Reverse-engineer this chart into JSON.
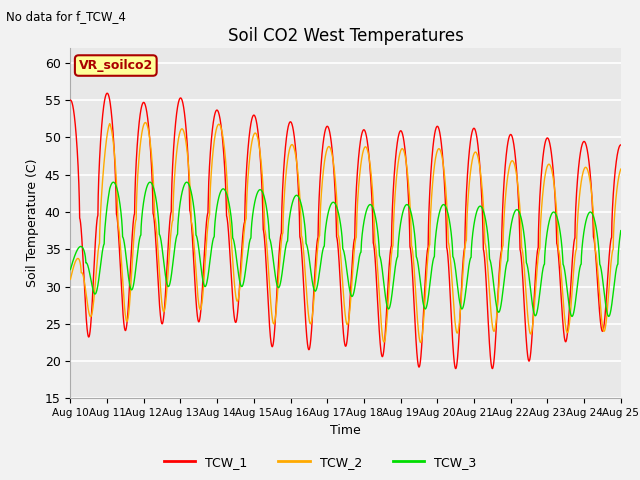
{
  "title": "Soil CO2 West Temperatures",
  "subtitle": "No data for f_TCW_4",
  "xlabel": "Time",
  "ylabel": "Soil Temperature (C)",
  "ylim": [
    15,
    62
  ],
  "yticks": [
    15,
    20,
    25,
    30,
    35,
    40,
    45,
    50,
    55,
    60
  ],
  "legend_labels": [
    "TCW_1",
    "TCW_2",
    "TCW_3"
  ],
  "legend_colors": [
    "#ff0000",
    "#ffaa00",
    "#00dd00"
  ],
  "annotation_box": "VR_soilco2",
  "annotation_box_color": "#aa0000",
  "annotation_box_bg": "#ffff99",
  "background_color": "#e8e8e8",
  "grid_color": "#ffffff",
  "period": 1.0,
  "tcw1_peaks": [
    55.0,
    56.0,
    54.5,
    55.5,
    53.0,
    53.0,
    51.5,
    51.5,
    50.5,
    51.5,
    51.5,
    50.5,
    50.0,
    49.5,
    49.0
  ],
  "tcw1_troughs": [
    23.0,
    23.5,
    25.0,
    25.0,
    26.0,
    22.0,
    21.5,
    22.0,
    20.5,
    19.0,
    19.0,
    19.0,
    20.5,
    24.0,
    24.0
  ],
  "tcw2_peaks": [
    31.0,
    52.0,
    52.0,
    51.0,
    52.0,
    50.0,
    48.5,
    49.0,
    48.5,
    48.5,
    48.5,
    47.0,
    46.5,
    46.0,
    46.0
  ],
  "tcw2_troughs": [
    28.0,
    24.0,
    27.0,
    26.0,
    29.0,
    25.0,
    25.0,
    25.0,
    22.5,
    22.5,
    24.0,
    24.0,
    23.5,
    24.0,
    24.0
  ],
  "tcw3_peaks": [
    33.0,
    44.0,
    44.0,
    44.0,
    43.0,
    43.0,
    42.0,
    41.0,
    41.0,
    41.0,
    41.0,
    40.5,
    40.0,
    40.0,
    40.0
  ],
  "tcw3_troughs": [
    29.0,
    29.0,
    30.0,
    30.0,
    30.0,
    30.0,
    29.5,
    29.0,
    27.0,
    27.0,
    27.0,
    26.5,
    26.0,
    26.0,
    26.0
  ],
  "tcw1_phase": 1.5708,
  "tcw2_phase": 1.3,
  "tcw3_phase": 0.5
}
